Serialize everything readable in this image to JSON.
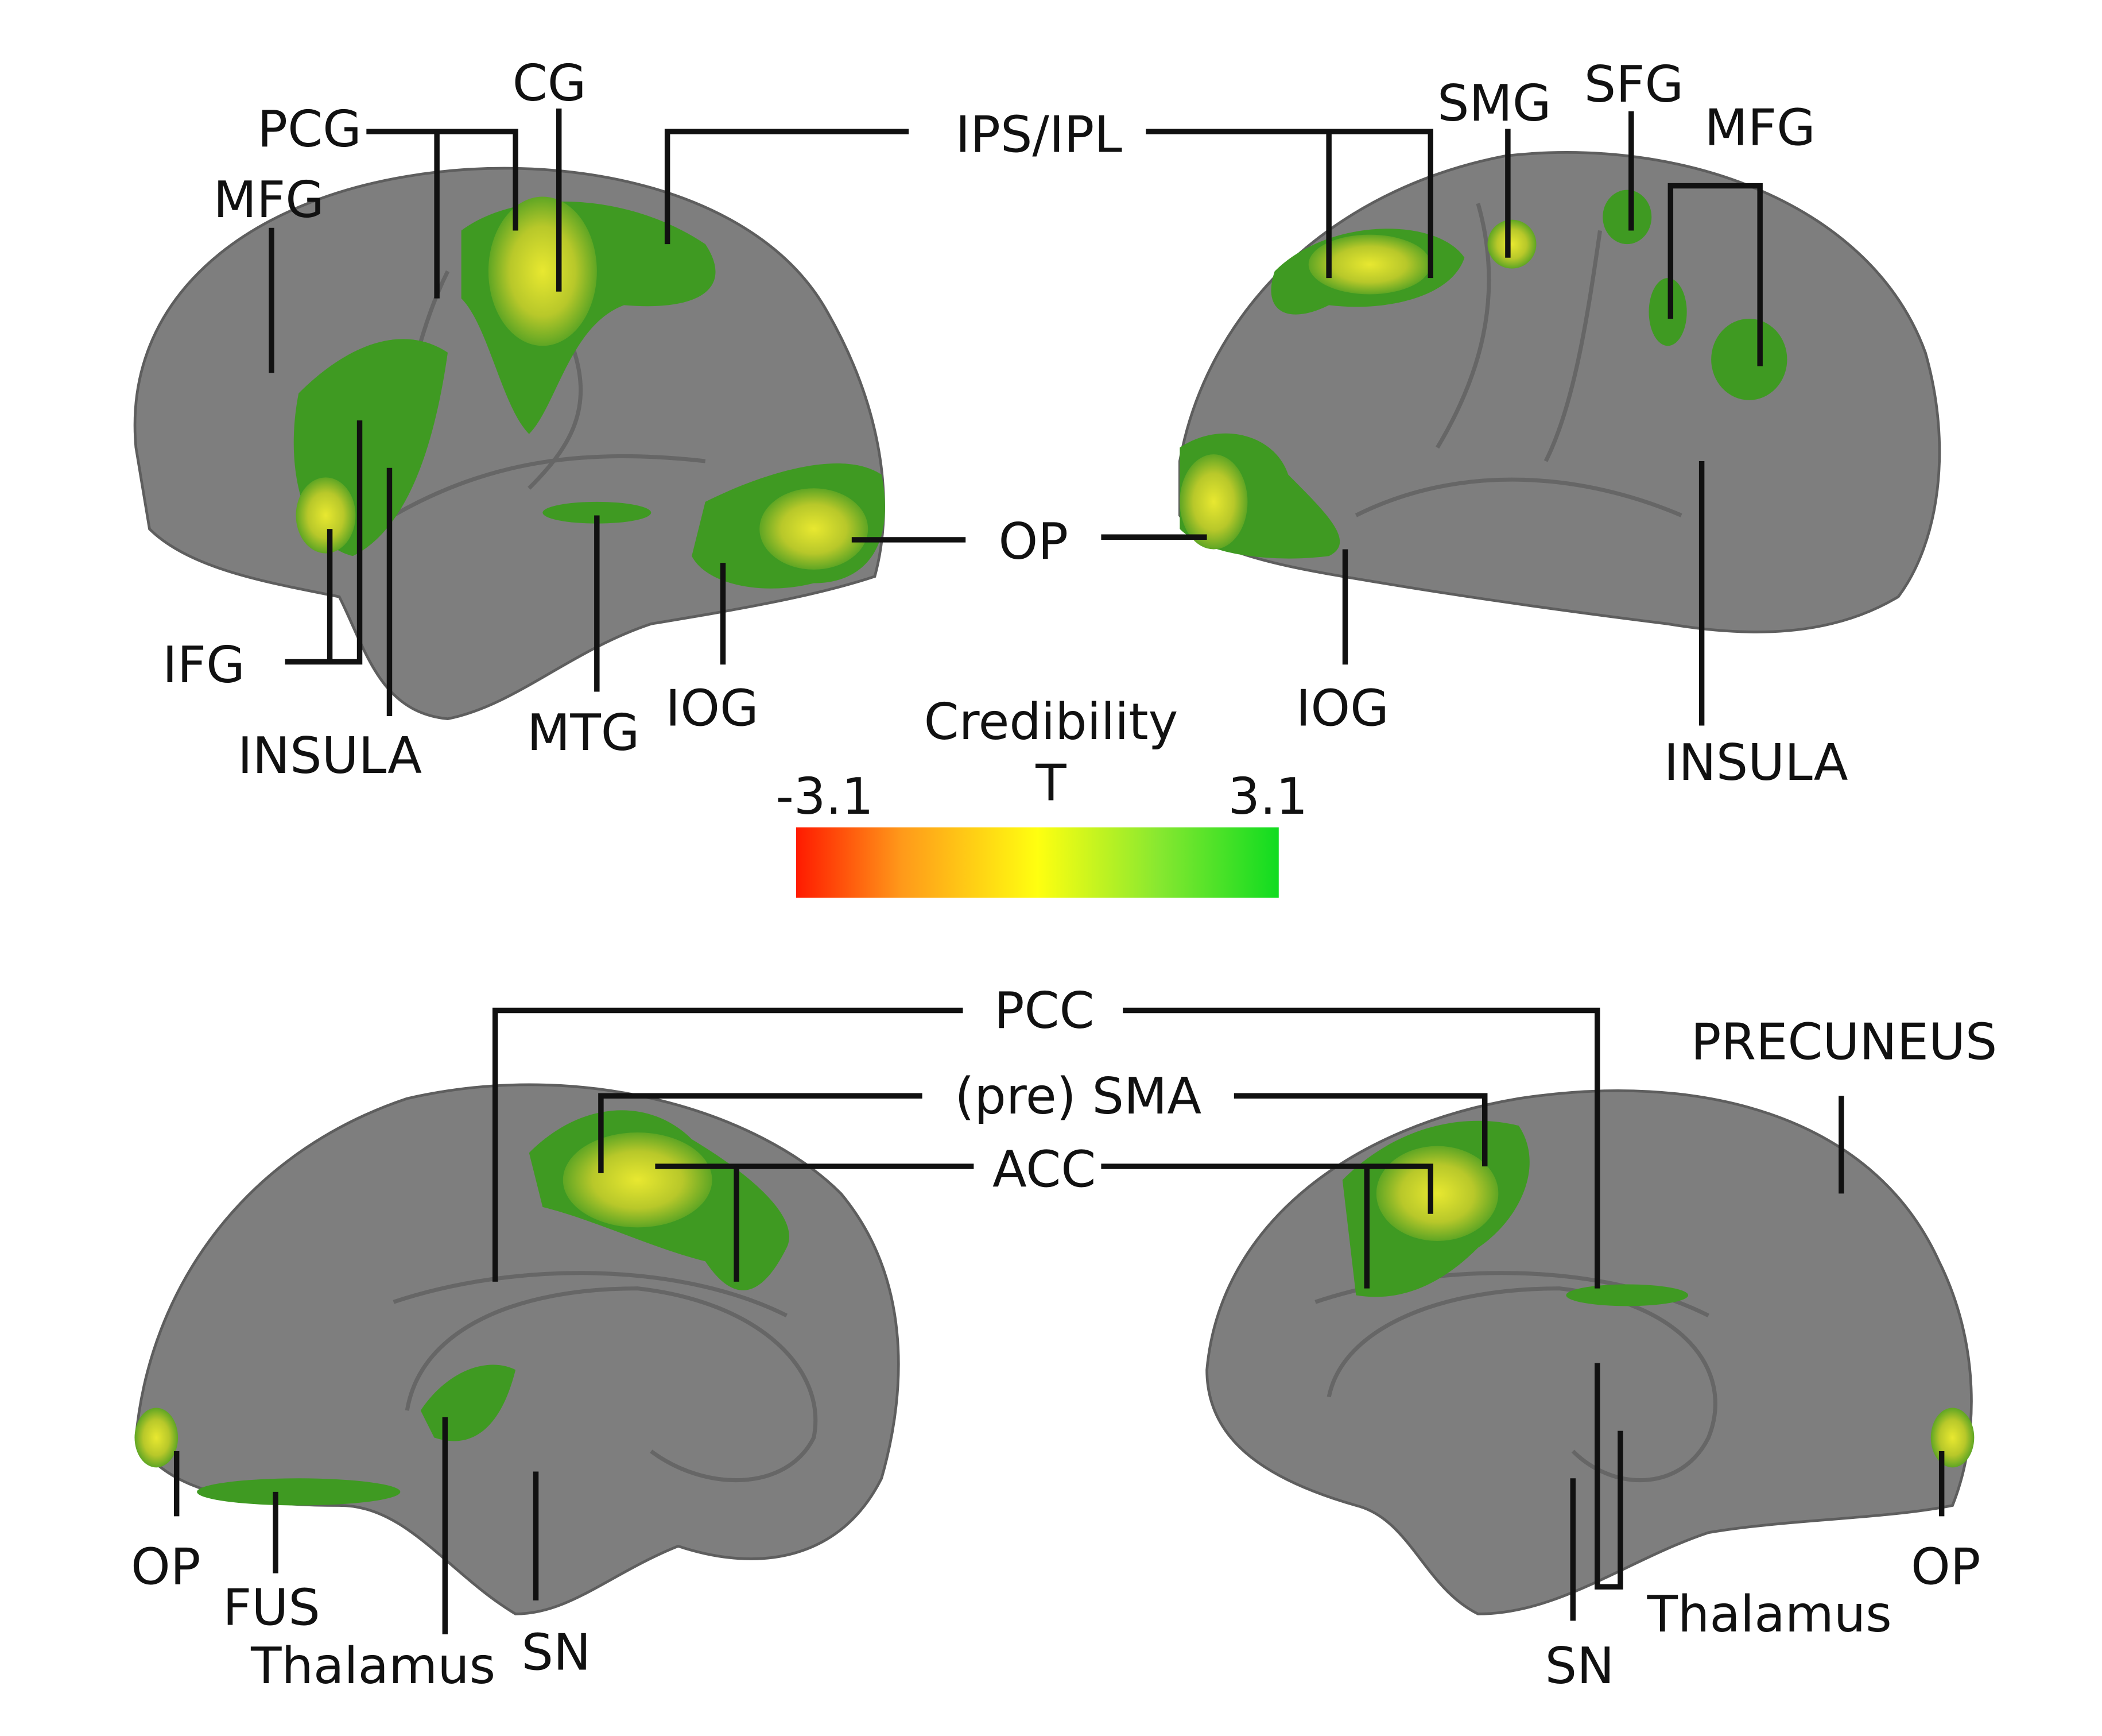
{
  "labels": {
    "top_left": [
      "MFG",
      "PCG",
      "CG",
      "IFG",
      "INSULA",
      "MTG",
      "IOG"
    ],
    "top_shared": [
      "IPS/IPL",
      "OP"
    ],
    "top_right": [
      "SMG",
      "SFG",
      "MFG",
      "IOG",
      "INSULA"
    ],
    "bottom_shared": [
      "PCC",
      "(pre) SMA",
      "ACC"
    ],
    "bottom_left": [
      "OP",
      "FUS",
      "Thalamus",
      "SN"
    ],
    "bottom_right": [
      "PRECUNEUS",
      "SN",
      "Thalamus",
      "OP"
    ]
  },
  "colorbar": {
    "title": "Credibility",
    "subtitle": "T",
    "min": "-3.1",
    "max": "3.1"
  }
}
